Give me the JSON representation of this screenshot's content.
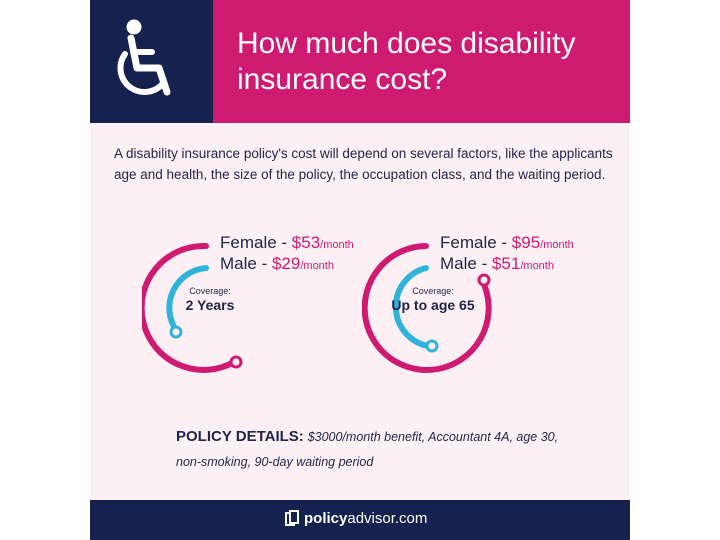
{
  "header": {
    "title": "How much does disability insurance cost?",
    "icon": "wheelchair-icon"
  },
  "intro": "A disability insurance policy's cost will depend on several factors, like the applicants age and health, the size of the policy, the occupation class, and the waiting period.",
  "plans": [
    {
      "female_label": "Female - ",
      "female_amount": "$53",
      "female_period": "/month",
      "male_label": "Male - ",
      "male_amount": "$29",
      "male_period": "/month",
      "coverage_label": "Coverage:",
      "coverage_value": "2 Years"
    },
    {
      "female_label": "Female - ",
      "female_amount": "$95",
      "female_period": "/month",
      "male_label": "Male - ",
      "male_amount": "$51",
      "male_period": "/month",
      "coverage_label": "Coverage:",
      "coverage_value": "Up to age 65"
    }
  ],
  "details": {
    "label": "POLICY DETAILS:",
    "text": "$3000/month benefit, Accountant 4A, age 30, non-smoking, 90-day waiting period"
  },
  "footer": {
    "brand_bold": "policy",
    "brand_rest": "advisor.com",
    "icon": "policyadvisor-logo-icon"
  },
  "colors": {
    "navy": "#16224e",
    "magenta": "#cf1a72",
    "cyan": "#2fb3d9",
    "background": "#fcf0f5"
  }
}
